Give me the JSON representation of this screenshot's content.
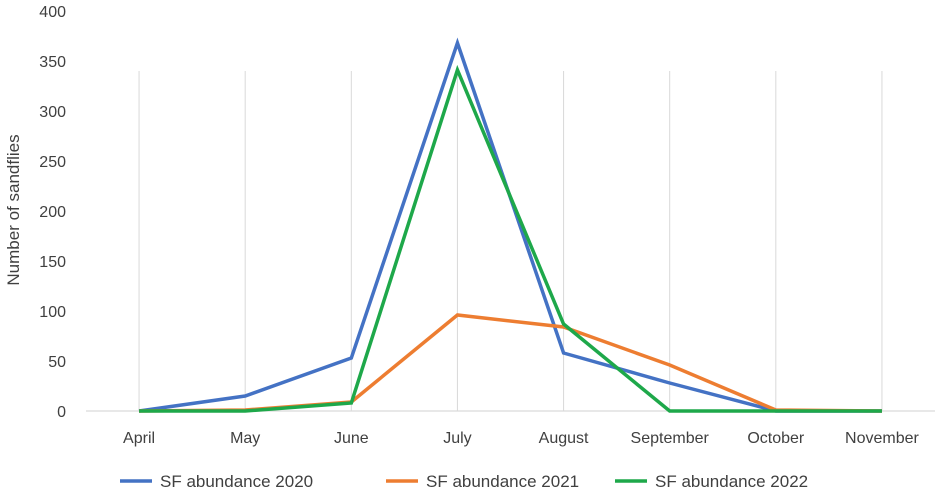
{
  "chart_data": {
    "type": "line",
    "title": "",
    "xlabel": "",
    "ylabel": "Number of sandflies",
    "categories": [
      "April",
      "May",
      "June",
      "July",
      "August",
      "September",
      "October",
      "November"
    ],
    "yticks": [
      0,
      50,
      100,
      150,
      200,
      250,
      300,
      350,
      400
    ],
    "ylim": [
      0,
      400
    ],
    "grid": "vertical",
    "legend_position": "bottom",
    "series": [
      {
        "name": "SF abundance 2020",
        "color": "#4472C4",
        "values": [
          0,
          15,
          53,
          368,
          58,
          28,
          0,
          0
        ]
      },
      {
        "name": "SF abundance 2021",
        "color": "#ED7D31",
        "values": [
          0,
          1,
          9,
          96,
          84,
          46,
          1,
          0
        ]
      },
      {
        "name": "SF abundance 2022",
        "color": "#1EA84A",
        "values": [
          0,
          0,
          8,
          341,
          87,
          0,
          0,
          0
        ]
      }
    ]
  }
}
